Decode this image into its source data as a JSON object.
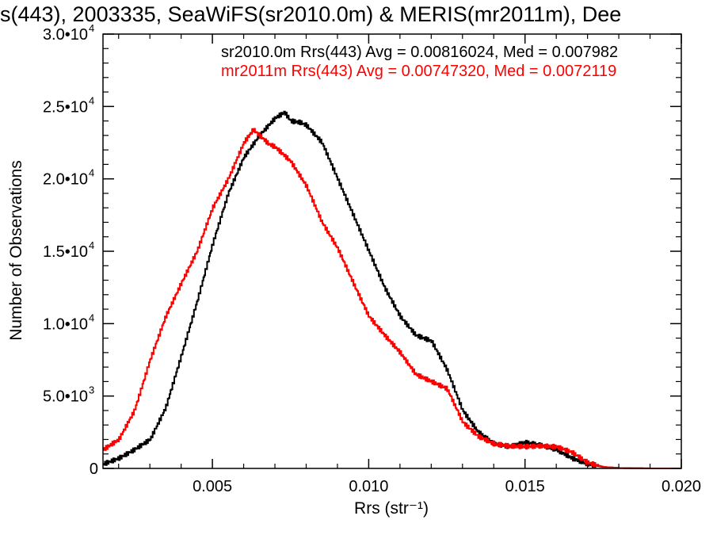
{
  "chart_data": {
    "type": "line",
    "title": "s(443), 2003335, SeaWiFS(sr2010.0m) & MERIS(mr2011m), Dee",
    "xlabel": "Rrs (str⁻¹)",
    "ylabel": "Number of Observations",
    "xlim": [
      0.0015,
      0.02
    ],
    "ylim": [
      0,
      30000
    ],
    "x_ticks": [
      {
        "value": 0.005,
        "label": "0.005"
      },
      {
        "value": 0.01,
        "label": "0.010"
      },
      {
        "value": 0.015,
        "label": "0.015"
      },
      {
        "value": 0.02,
        "label": "0.020"
      }
    ],
    "y_ticks": [
      {
        "value": 0,
        "mantissa": "0",
        "exponent": ""
      },
      {
        "value": 5000,
        "mantissa": "5.0•10",
        "exponent": "3"
      },
      {
        "value": 10000,
        "mantissa": "1.0•10",
        "exponent": "4"
      },
      {
        "value": 15000,
        "mantissa": "1.5•10",
        "exponent": "4"
      },
      {
        "value": 20000,
        "mantissa": "2.0•10",
        "exponent": "4"
      },
      {
        "value": 25000,
        "mantissa": "2.5•10",
        "exponent": "4"
      },
      {
        "value": 30000,
        "mantissa": "3.0•10",
        "exponent": "4"
      }
    ],
    "grid": false,
    "legend_placement": "top-right",
    "series": [
      {
        "name": "sr2010.0m Rrs(443) Avg = 0.00816024, Med = 0.007982",
        "color": "#000000",
        "x": [
          0.0015,
          0.002,
          0.0025,
          0.003,
          0.0035,
          0.004,
          0.0045,
          0.005,
          0.0055,
          0.006,
          0.0065,
          0.007,
          0.0073,
          0.0075,
          0.0078,
          0.008,
          0.0085,
          0.009,
          0.0095,
          0.01,
          0.0105,
          0.011,
          0.0115,
          0.012,
          0.0125,
          0.013,
          0.0135,
          0.014,
          0.0145,
          0.015,
          0.0155,
          0.016,
          0.0165,
          0.017,
          0.0175,
          0.018,
          0.019,
          0.02
        ],
        "y": [
          300,
          700,
          1300,
          2000,
          4200,
          7800,
          11500,
          15500,
          19000,
          21500,
          23000,
          24200,
          24600,
          24000,
          23900,
          23700,
          22500,
          20000,
          17500,
          15000,
          12500,
          10500,
          9200,
          8800,
          6800,
          4000,
          2500,
          1700,
          1500,
          1800,
          1600,
          1300,
          700,
          300,
          100,
          30,
          0,
          0
        ]
      },
      {
        "name": "mr2011m Rrs(443) Avg = 0.00747320, Med = 0.0072119",
        "color": "#ff0000",
        "x": [
          0.0015,
          0.002,
          0.0025,
          0.003,
          0.0035,
          0.004,
          0.0045,
          0.005,
          0.0055,
          0.006,
          0.0063,
          0.0065,
          0.0068,
          0.007,
          0.0075,
          0.008,
          0.0085,
          0.009,
          0.0095,
          0.01,
          0.0105,
          0.011,
          0.0115,
          0.012,
          0.0125,
          0.013,
          0.0135,
          0.014,
          0.0145,
          0.015,
          0.0155,
          0.016,
          0.0165,
          0.017,
          0.0175,
          0.018,
          0.019,
          0.02
        ],
        "y": [
          1300,
          2000,
          4000,
          7500,
          10500,
          12800,
          15000,
          18000,
          20000,
          22500,
          23400,
          23000,
          22400,
          22200,
          21200,
          19500,
          17000,
          15200,
          12800,
          10500,
          9200,
          8000,
          6500,
          6000,
          5500,
          3200,
          2200,
          1700,
          1550,
          1500,
          1550,
          1500,
          1100,
          400,
          100,
          30,
          0,
          0
        ]
      }
    ]
  }
}
